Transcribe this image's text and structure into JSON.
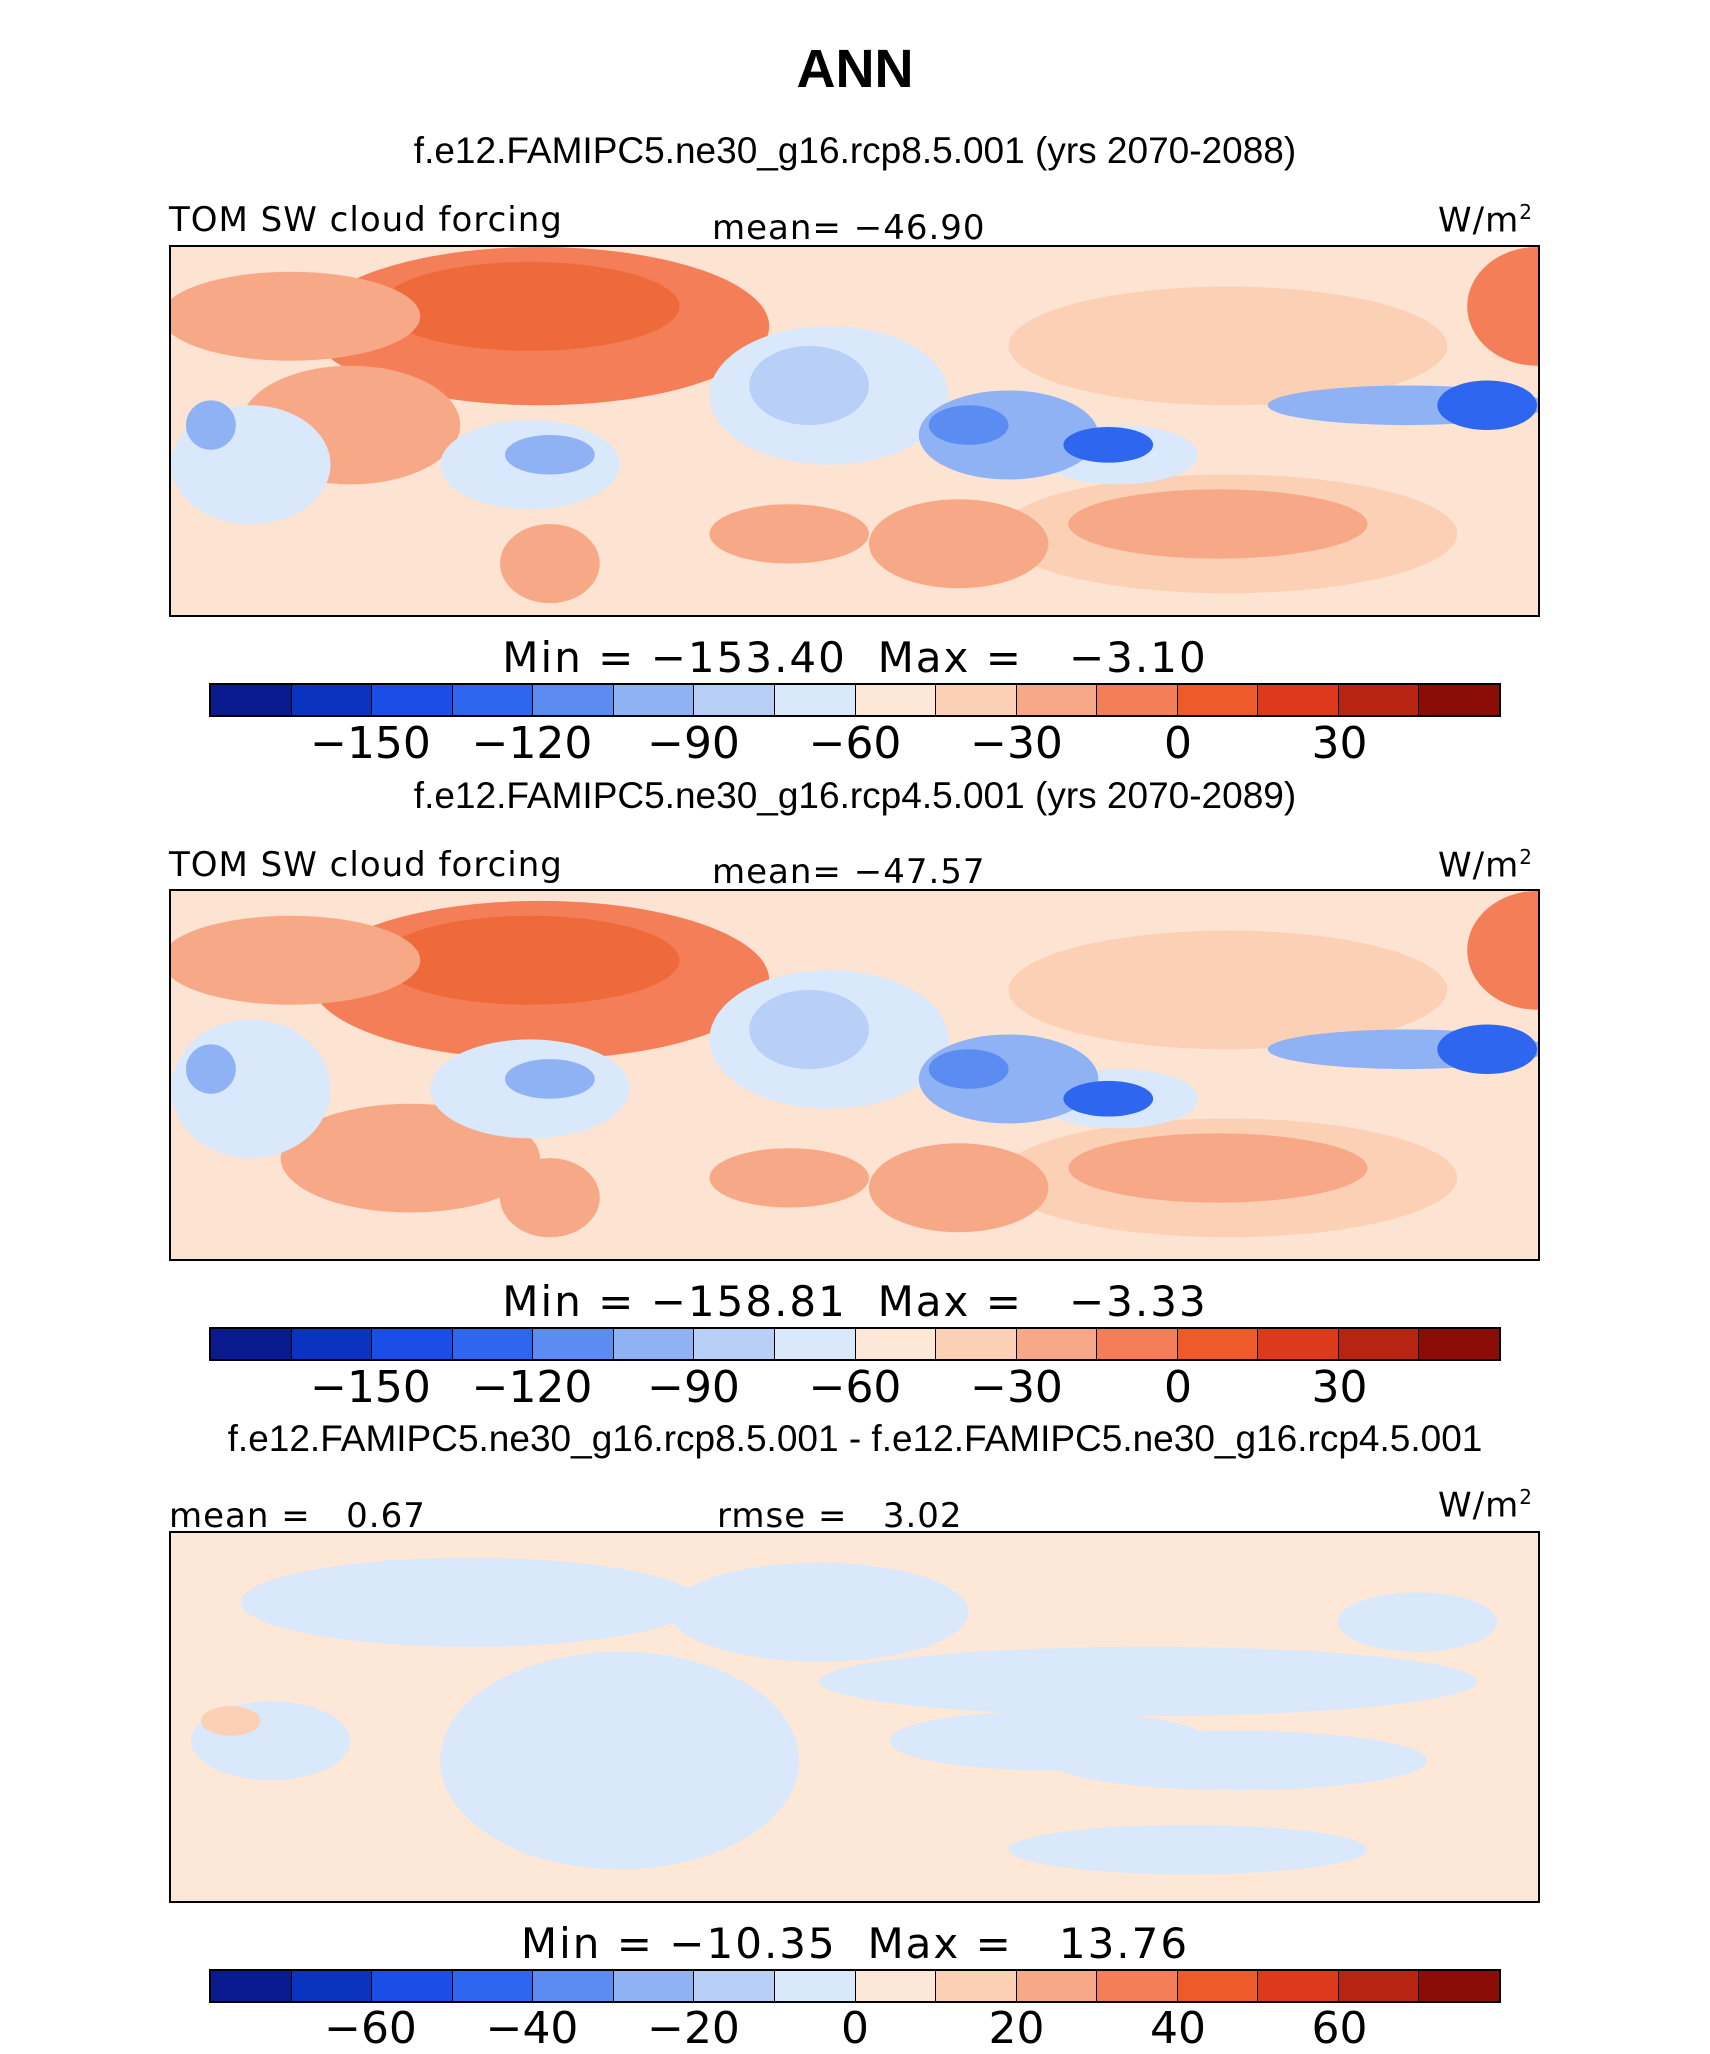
{
  "title": "ANN",
  "colors": {
    "levels": [
      "#0a1a8f",
      "#0a33c0",
      "#1a4ee6",
      "#2e66f0",
      "#5a8cf2",
      "#8fb2f5",
      "#b8cff8",
      "#d9e8fb",
      "#fde8d8",
      "#fbd0b5",
      "#f7a987",
      "#f47e57",
      "#ef5a2a",
      "#dc3a1a",
      "#b82412",
      "#8c0d05"
    ]
  },
  "panels": [
    {
      "case": "f.e12.FAMIPC5.ne30_g16.rcp8.5.001 (yrs 2070-2088)",
      "left_label": "TOM SW cloud forcing",
      "center_label": "mean= −46.90",
      "units": "W/m",
      "units_sup": "2",
      "stats": "Min = −153.40  Max =   −3.10",
      "ticks": [
        "−150",
        "−120",
        "−90",
        "−60",
        "−30",
        "0",
        "30"
      ],
      "fill": "#fde3d2"
    },
    {
      "case": "f.e12.FAMIPC5.ne30_g16.rcp4.5.001 (yrs 2070-2089)",
      "left_label": "TOM SW cloud forcing",
      "center_label": "mean= −47.57",
      "units": "W/m",
      "units_sup": "2",
      "stats": "Min = −158.81  Max =   −3.33",
      "ticks": [
        "−150",
        "−120",
        "−90",
        "−60",
        "−30",
        "0",
        "30"
      ],
      "fill": "#fde3d2"
    },
    {
      "case": "f.e12.FAMIPC5.ne30_g16.rcp8.5.001 - f.e12.FAMIPC5.ne30_g16.rcp4.5.001",
      "left_label": "mean =   0.67",
      "center_label": "rmse =   3.02",
      "units": "W/m",
      "units_sup": "2",
      "stats": "Min = −10.35  Max =   13.76",
      "ticks": [
        "−60",
        "−40",
        "−20",
        "0",
        "20",
        "40",
        "60"
      ],
      "fill": "#fde8d8"
    }
  ]
}
